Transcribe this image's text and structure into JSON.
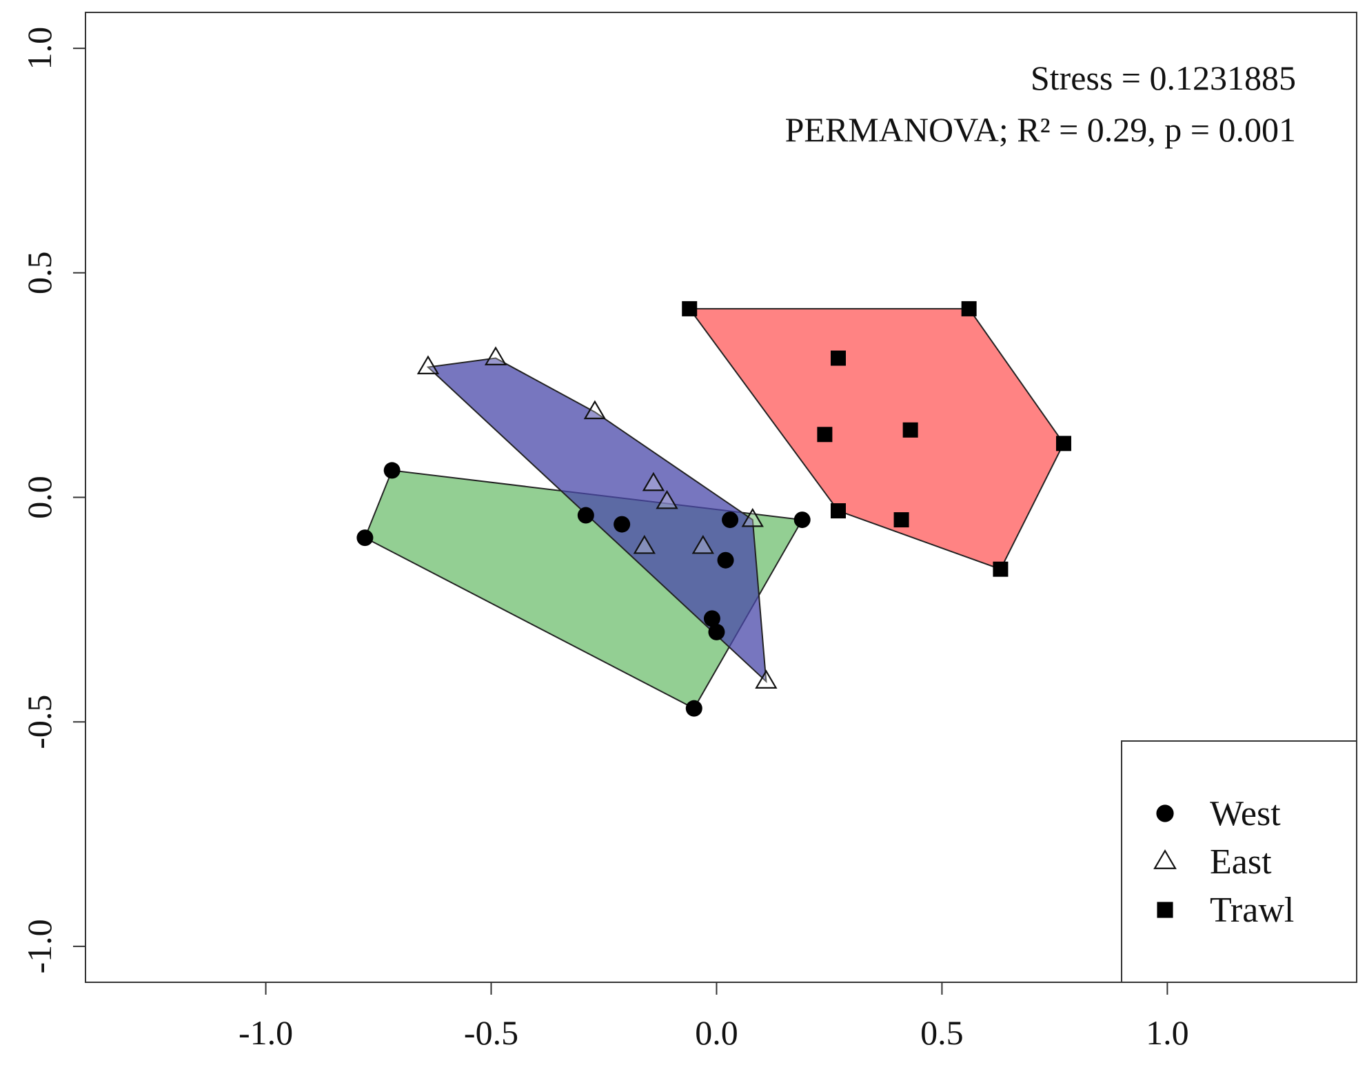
{
  "chart_data": {
    "type": "scatter",
    "xlim": [
      -1.4,
      1.42
    ],
    "ylim": [
      -1.08,
      1.08
    ],
    "x_ticks": [
      -1.0,
      -0.5,
      0.0,
      0.5,
      1.0
    ],
    "y_ticks": [
      -1.0,
      -0.5,
      0.0,
      0.5,
      1.0
    ],
    "x_tick_labels": [
      "-1.0",
      "-0.5",
      "0.0",
      "0.5",
      "1.0"
    ],
    "y_tick_labels": [
      "-1.0",
      "-0.5",
      "0.0",
      "0.5",
      "1.0"
    ],
    "grid": false,
    "legend_position": "bottom-right",
    "annotations": {
      "stress": "Stress = 0.1231885",
      "permanova": "PERMANOVA; R² = 0.29, p = 0.001"
    },
    "series": [
      {
        "name": "West",
        "marker": "circle",
        "hull_color": "#6fbf6f",
        "points": [
          [
            -0.72,
            0.06
          ],
          [
            -0.78,
            -0.09
          ],
          [
            -0.29,
            -0.04
          ],
          [
            -0.21,
            -0.06
          ],
          [
            0.03,
            -0.05
          ],
          [
            0.19,
            -0.05
          ],
          [
            0.02,
            -0.14
          ],
          [
            -0.01,
            -0.27
          ],
          [
            0.0,
            -0.3
          ],
          [
            -0.05,
            -0.47
          ]
        ]
      },
      {
        "name": "East",
        "marker": "triangle",
        "hull_color": "#4a48aa",
        "points": [
          [
            -0.64,
            0.29
          ],
          [
            -0.49,
            0.31
          ],
          [
            -0.27,
            0.19
          ],
          [
            -0.14,
            0.03
          ],
          [
            -0.11,
            -0.01
          ],
          [
            0.08,
            -0.05
          ],
          [
            -0.03,
            -0.11
          ],
          [
            -0.16,
            -0.11
          ],
          [
            0.11,
            -0.41
          ]
        ]
      },
      {
        "name": "Trawl",
        "marker": "square",
        "hull_color": "#ff5a5a",
        "points": [
          [
            -0.06,
            0.42
          ],
          [
            0.56,
            0.42
          ],
          [
            0.27,
            0.31
          ],
          [
            0.24,
            0.14
          ],
          [
            0.43,
            0.15
          ],
          [
            0.77,
            0.12
          ],
          [
            0.27,
            -0.03
          ],
          [
            0.41,
            -0.05
          ],
          [
            0.63,
            -0.16
          ]
        ]
      }
    ]
  }
}
